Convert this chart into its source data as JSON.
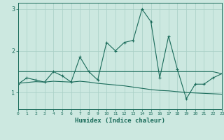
{
  "xlabel": "Humidex (Indice chaleur)",
  "ylabel": "",
  "bg_color": "#cce8e0",
  "line_color": "#1a6b5a",
  "grid_color": "#a8cfc5",
  "x_values": [
    0,
    1,
    2,
    3,
    4,
    5,
    6,
    7,
    8,
    9,
    10,
    11,
    12,
    13,
    14,
    15,
    16,
    17,
    18,
    19,
    20,
    21,
    22,
    23
  ],
  "y_main": [
    1.2,
    1.35,
    1.3,
    1.25,
    1.5,
    1.4,
    1.25,
    1.85,
    1.5,
    1.3,
    2.2,
    2.0,
    2.2,
    2.25,
    3.0,
    2.7,
    1.35,
    2.35,
    1.55,
    0.85,
    1.2,
    1.2,
    1.35,
    1.45
  ],
  "y_flat": [
    1.5,
    1.5,
    1.5,
    1.5,
    1.5,
    1.5,
    1.5,
    1.5,
    1.5,
    1.5,
    1.5,
    1.5,
    1.5,
    1.5,
    1.5,
    1.5,
    1.5,
    1.5,
    1.5,
    1.5,
    1.5,
    1.5,
    1.5,
    1.45
  ],
  "y_trend": [
    1.22,
    1.24,
    1.26,
    1.25,
    1.27,
    1.26,
    1.25,
    1.27,
    1.25,
    1.22,
    1.2,
    1.18,
    1.16,
    1.13,
    1.1,
    1.07,
    1.05,
    1.04,
    1.02,
    1.0,
    0.99,
    0.98,
    0.97,
    0.96
  ],
  "xlim": [
    0,
    23
  ],
  "ylim": [
    0.6,
    3.15
  ],
  "yticks": [
    1,
    2,
    3
  ],
  "xticks": [
    0,
    1,
    2,
    3,
    4,
    5,
    6,
    7,
    8,
    9,
    10,
    11,
    12,
    13,
    14,
    15,
    16,
    17,
    18,
    19,
    20,
    21,
    22,
    23
  ]
}
